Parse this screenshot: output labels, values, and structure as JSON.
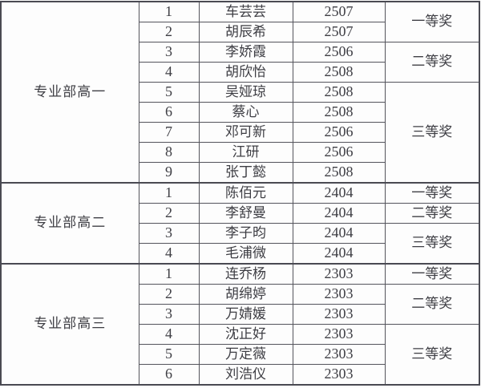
{
  "colors": {
    "background": "#fdfdfd",
    "text": "#3e3e44",
    "grid_border": "#54545c",
    "section_border": "#4a4a52"
  },
  "table": {
    "sections": [
      {
        "group": "专业部高一",
        "rows": [
          {
            "num": "1",
            "name": "车芸芸",
            "class": "2507"
          },
          {
            "num": "2",
            "name": "胡辰希",
            "class": "2507"
          },
          {
            "num": "3",
            "name": "李娇霞",
            "class": "2506"
          },
          {
            "num": "4",
            "name": "胡欣怡",
            "class": "2508"
          },
          {
            "num": "5",
            "name": "吴娅琼",
            "class": "2508"
          },
          {
            "num": "6",
            "name": "蔡心",
            "class": "2508"
          },
          {
            "num": "7",
            "name": "邓可新",
            "class": "2506"
          },
          {
            "num": "8",
            "name": "江研",
            "class": "2506"
          },
          {
            "num": "9",
            "name": "张丁懿",
            "class": "2508"
          }
        ],
        "awards": [
          {
            "label": "一等奖",
            "span": 2
          },
          {
            "label": "二等奖",
            "span": 2
          },
          {
            "label": "三等奖",
            "span": 5
          }
        ]
      },
      {
        "group": "专业部高二",
        "rows": [
          {
            "num": "1",
            "name": "陈佰元",
            "class": "2404"
          },
          {
            "num": "2",
            "name": "李舒曼",
            "class": "2404"
          },
          {
            "num": "3",
            "name": "李子昀",
            "class": "2404"
          },
          {
            "num": "4",
            "name": "毛浦微",
            "class": "2404"
          }
        ],
        "awards": [
          {
            "label": "一等奖",
            "span": 1
          },
          {
            "label": "二等奖",
            "span": 1
          },
          {
            "label": "三等奖",
            "span": 2
          }
        ]
      },
      {
        "group": "专业部高三",
        "rows": [
          {
            "num": "1",
            "name": "连乔杨",
            "class": "2303"
          },
          {
            "num": "2",
            "name": "胡绵婷",
            "class": "2303"
          },
          {
            "num": "3",
            "name": "万婧媛",
            "class": "2303"
          },
          {
            "num": "4",
            "name": "沈正好",
            "class": "2303"
          },
          {
            "num": "5",
            "name": "万定薇",
            "class": "2303"
          },
          {
            "num": "6",
            "name": "刘浩仪",
            "class": "2303"
          }
        ],
        "awards": [
          {
            "label": "一等奖",
            "span": 1
          },
          {
            "label": "二等奖",
            "span": 2
          },
          {
            "label": "三等奖",
            "span": 3
          }
        ]
      }
    ]
  }
}
